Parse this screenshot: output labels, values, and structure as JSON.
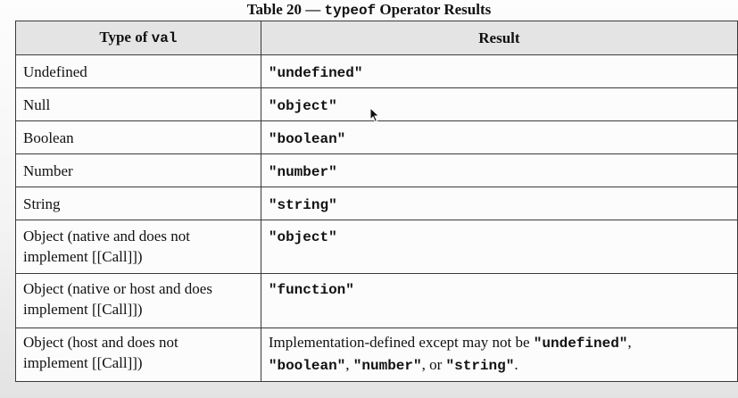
{
  "caption": {
    "prefix": "Table 20 — ",
    "code": "typeof",
    "suffix": " Operator Results"
  },
  "headers": {
    "type_prefix": "Type of ",
    "type_code": "val",
    "result": "Result"
  },
  "rows": [
    {
      "type": "Undefined",
      "result": "\"undefined\""
    },
    {
      "type": "Null",
      "result": "\"object\""
    },
    {
      "type": "Boolean",
      "result": "\"boolean\""
    },
    {
      "type": "Number",
      "result": "\"number\""
    },
    {
      "type": "String",
      "result": "\"string\""
    },
    {
      "type_line1": "Object (native and does not",
      "type_line2": "implement [[Call]])",
      "result": "\"object\""
    },
    {
      "type_line1": "Object (native or host and does",
      "type_line2": "implement [[Call]])",
      "result": "\"function\""
    },
    {
      "type_line1": "Object (host and does not",
      "type_line2": "implement [[Call]])",
      "result_text1": "Implementation-defined except may not be ",
      "result_code1": "\"undefined\"",
      "result_text2": ",",
      "result_code2": "\"boolean\"",
      "result_text3": ", ",
      "result_code3": "\"number\"",
      "result_text4": ", or ",
      "result_code4": "\"string\"",
      "result_text5": "."
    }
  ],
  "cursor_icon": "mouse-pointer-icon"
}
